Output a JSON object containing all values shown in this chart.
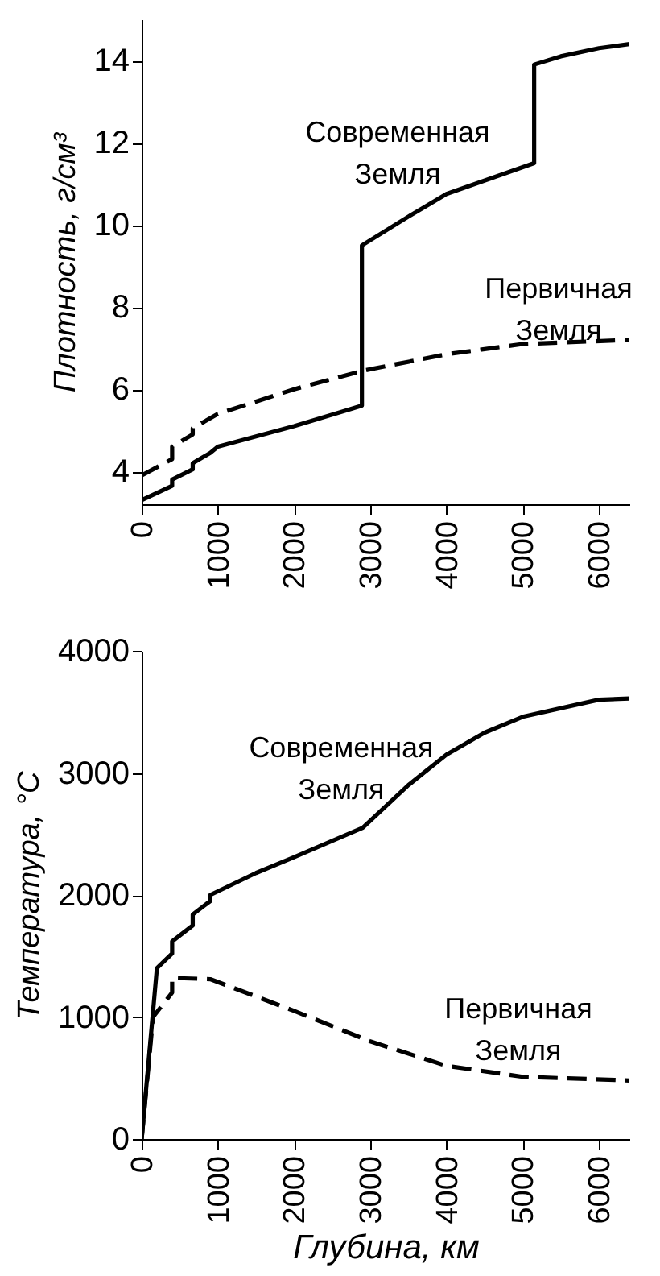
{
  "chart_data": [
    {
      "type": "line",
      "ylabel": "Плотность, г/см³",
      "xlim": [
        0,
        6400
      ],
      "ylim": [
        3.2,
        15
      ],
      "xticks": [
        0,
        1000,
        2000,
        3000,
        4000,
        5000,
        6000
      ],
      "yticks": [
        4,
        6,
        8,
        10,
        12,
        14
      ],
      "grid": false,
      "series": [
        {
          "color": "#000000",
          "line_style": "solid",
          "x": [
            0,
            400,
            400,
            670,
            670,
            900,
            1000,
            2000,
            2890,
            2890,
            3500,
            4000,
            5150,
            5150,
            5500,
            6000,
            6400
          ],
          "values": [
            3.3,
            3.65,
            3.8,
            4.05,
            4.2,
            4.45,
            4.6,
            5.1,
            5.6,
            9.5,
            10.2,
            10.75,
            11.5,
            13.9,
            14.1,
            14.3,
            14.4
          ]
        },
        {
          "color": "#000000",
          "line_style": "dashed",
          "x": [
            0,
            400,
            400,
            670,
            670,
            1000,
            2000,
            2900,
            4000,
            5000,
            6400
          ],
          "values": [
            3.9,
            4.3,
            4.6,
            4.9,
            5.05,
            5.4,
            6.0,
            6.45,
            6.85,
            7.1,
            7.2
          ]
        }
      ],
      "annotations": [
        "Современная Земля",
        "Первичная Земля"
      ]
    },
    {
      "type": "line",
      "xlabel": "Глубина, км",
      "ylabel": "Температура, °C",
      "xlim": [
        0,
        6400
      ],
      "ylim": [
        0,
        4000
      ],
      "xticks": [
        0,
        1000,
        2000,
        3000,
        4000,
        5000,
        6000
      ],
      "yticks": [
        0,
        1000,
        2000,
        3000,
        4000
      ],
      "grid": false,
      "series": [
        {
          "color": "#000000",
          "line_style": "solid",
          "x": [
            0,
            200,
            400,
            400,
            670,
            670,
            900,
            900,
            1500,
            2000,
            2900,
            3500,
            4000,
            4500,
            5000,
            6000,
            6400
          ],
          "values": [
            0,
            1400,
            1520,
            1620,
            1750,
            1840,
            1950,
            2000,
            2180,
            2310,
            2550,
            2900,
            3150,
            3330,
            3460,
            3600,
            3610
          ]
        },
        {
          "color": "#000000",
          "line_style": "dashed",
          "x": [
            0,
            150,
            400,
            400,
            900,
            2000,
            3000,
            4000,
            5000,
            6400
          ],
          "values": [
            0,
            1000,
            1200,
            1320,
            1310,
            1050,
            800,
            600,
            510,
            480
          ]
        }
      ],
      "annotations": [
        "Современная Земля",
        "Первичная Земля"
      ]
    }
  ]
}
